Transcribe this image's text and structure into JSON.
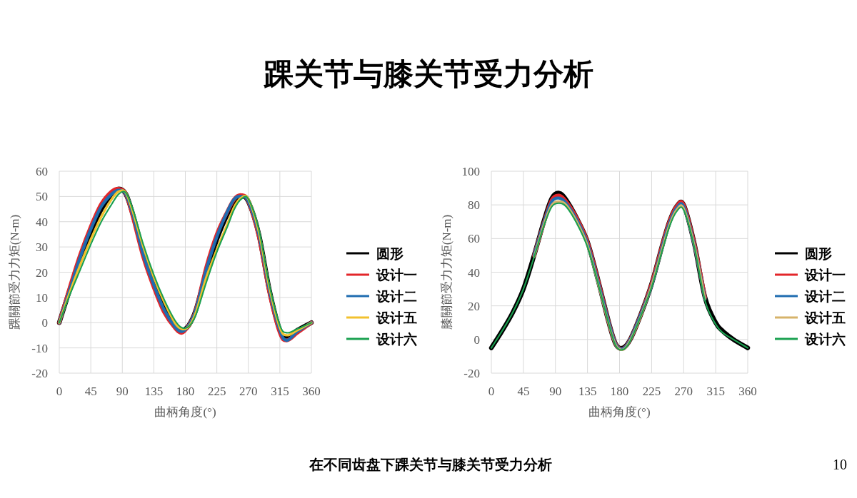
{
  "chart_data": [
    {
      "type": "line",
      "title": "踝关节与膝关节受力分析",
      "xlabel": "曲柄角度(°)",
      "ylabel": "踝關節受力力矩(N-m)",
      "annotations": [
        "在不同齿盘下踝关节与膝关节受力分析",
        "10"
      ],
      "x": [
        0,
        15,
        30,
        45,
        60,
        75,
        85,
        95,
        105,
        120,
        135,
        150,
        165,
        175,
        185,
        195,
        210,
        225,
        240,
        250,
        260,
        270,
        285,
        300,
        315,
        325,
        340,
        360
      ],
      "xlim": [
        0,
        360
      ],
      "ylim": [
        -20,
        60
      ],
      "xticks": [
        0,
        45,
        90,
        135,
        180,
        225,
        270,
        315,
        360
      ],
      "yticks": [
        -20,
        -10,
        0,
        10,
        20,
        30,
        40,
        50,
        60
      ],
      "grid": true,
      "legend": "right",
      "series": [
        {
          "name": "圆形",
          "color": "#000000",
          "values": [
            0,
            13,
            25,
            36,
            45,
            51,
            53,
            51,
            43,
            28,
            16,
            6,
            -1,
            -3,
            -1,
            5,
            20,
            33,
            43,
            48,
            50,
            48,
            35,
            13,
            -3,
            -6,
            -3,
            0
          ]
        },
        {
          "name": "设计一",
          "color": "#e3262a",
          "values": [
            0,
            14,
            27,
            38,
            47,
            52,
            53,
            51,
            42,
            26,
            14,
            4,
            -2,
            -4,
            -1,
            5,
            22,
            35,
            44,
            49,
            50.5,
            48,
            34,
            12,
            -4,
            -7,
            -4,
            0
          ]
        },
        {
          "name": "设计二",
          "color": "#1f6cb0",
          "values": [
            0,
            13,
            26,
            37,
            46,
            51,
            52.5,
            51,
            43,
            27,
            15,
            5,
            -1.5,
            -3.5,
            -1,
            5,
            21,
            34,
            44,
            49,
            50,
            48,
            35,
            13,
            -3,
            -7,
            -3.5,
            0
          ]
        },
        {
          "name": "设计五",
          "color": "#f2c12e",
          "values": [
            0,
            12,
            23,
            33,
            42,
            49,
            52,
            51.5,
            44,
            30,
            18,
            8,
            0,
            -2.5,
            -1.5,
            4,
            18,
            29,
            39,
            46,
            49.5,
            49,
            36,
            14,
            -2,
            -5,
            -3,
            0
          ]
        },
        {
          "name": "设计六",
          "color": "#1aa050",
          "values": [
            0,
            11,
            21,
            31,
            40,
            47,
            51,
            51.5,
            45,
            31,
            19,
            9,
            1,
            -2,
            -1.5,
            3,
            16,
            28,
            38,
            45,
            49,
            49,
            37,
            15,
            -1,
            -4,
            -2.5,
            0
          ]
        }
      ]
    },
    {
      "type": "line",
      "xlabel": "曲柄角度(°)",
      "ylabel": "膝關節受力力矩(N-m)",
      "x": [
        0,
        15,
        30,
        45,
        60,
        75,
        85,
        95,
        105,
        120,
        135,
        150,
        165,
        175,
        185,
        195,
        210,
        225,
        240,
        250,
        260,
        270,
        285,
        300,
        315,
        325,
        340,
        360
      ],
      "xlim": [
        0,
        360
      ],
      "ylim": [
        -20,
        100
      ],
      "xticks": [
        0,
        45,
        90,
        135,
        180,
        225,
        270,
        315,
        360
      ],
      "yticks": [
        -20,
        0,
        20,
        40,
        60,
        80,
        100
      ],
      "grid": true,
      "legend": "right",
      "series": [
        {
          "name": "圆形",
          "color": "#000000",
          "values": [
            -5,
            5,
            16,
            30,
            50,
            72,
            84,
            87,
            83,
            72,
            58,
            35,
            10,
            -3,
            -5,
            0,
            15,
            33,
            56,
            70,
            79,
            80,
            57,
            25,
            10,
            5,
            0,
            -5
          ]
        },
        {
          "name": "设计一",
          "color": "#e3262a",
          "values": [
            null,
            null,
            null,
            null,
            50,
            71,
            83,
            85.5,
            82,
            72,
            58,
            35,
            10,
            -3,
            -5.5,
            0,
            15,
            33,
            56,
            70,
            79,
            80,
            57,
            25,
            null,
            null,
            null,
            null
          ]
        },
        {
          "name": "设计二",
          "color": "#1f6cb0",
          "values": [
            null,
            null,
            null,
            null,
            50,
            71,
            82,
            84,
            81,
            71,
            57,
            34,
            10,
            -3,
            -5.5,
            0,
            15,
            32,
            55,
            69,
            78,
            79,
            56,
            24,
            null,
            null,
            null,
            null
          ]
        },
        {
          "name": "设计五",
          "color": "#d6b36a",
          "values": [
            null,
            null,
            null,
            null,
            49,
            70,
            80,
            82,
            80,
            70,
            56,
            33,
            9,
            -3.5,
            -6,
            -0.5,
            14,
            32,
            54,
            68,
            77,
            78,
            56,
            24,
            null,
            null,
            null,
            null
          ]
        },
        {
          "name": "设计六",
          "color": "#1aa050",
          "values": [
            -5,
            5,
            16,
            30,
            49,
            69,
            79,
            81,
            79,
            69,
            55,
            33,
            9,
            -4,
            -6,
            -1,
            14,
            31,
            53,
            67,
            76,
            77,
            55,
            23,
            9,
            4,
            0,
            -5
          ]
        }
      ]
    }
  ]
}
